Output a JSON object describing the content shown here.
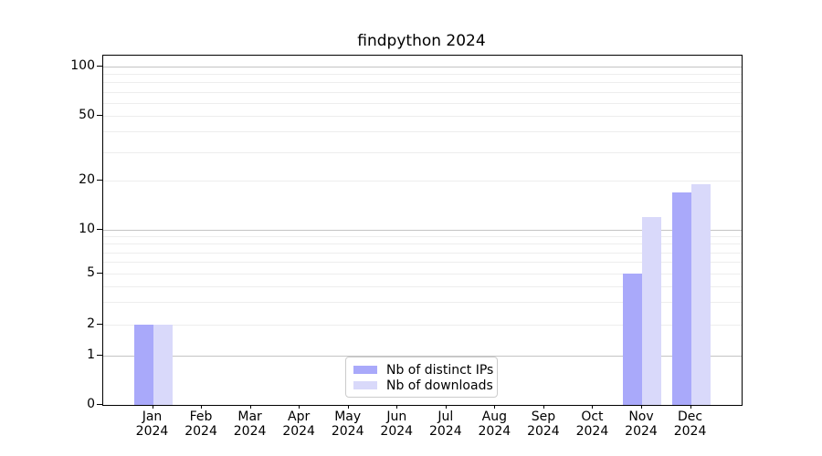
{
  "title": "findpython 2024",
  "chart_data": {
    "type": "bar",
    "title": "findpython 2024",
    "categories": [
      "Jan",
      "Feb",
      "Mar",
      "Apr",
      "May",
      "Jun",
      "Jul",
      "Aug",
      "Sep",
      "Oct",
      "Nov",
      "Dec"
    ],
    "x_year_label": "2024",
    "series": [
      {
        "name": "Nb of distinct IPs",
        "color": "#a9a9fa",
        "values": [
          2,
          0,
          0,
          0,
          0,
          0,
          0,
          0,
          0,
          0,
          5,
          17
        ]
      },
      {
        "name": "Nb of downloads",
        "color": "#d9d9fa",
        "values": [
          2,
          0,
          0,
          0,
          0,
          0,
          0,
          0,
          0,
          0,
          12,
          19
        ]
      }
    ],
    "y_scale": "log-with-zero",
    "y_ticks": [
      0,
      1,
      2,
      5,
      10,
      20,
      50,
      100
    ],
    "y_major_gridlines": [
      1,
      10,
      100
    ],
    "y_minor_gridlines": [
      2,
      3,
      4,
      5,
      6,
      7,
      8,
      9,
      20,
      30,
      40,
      50,
      60,
      70,
      80,
      90
    ],
    "ylim": [
      0,
      110
    ],
    "grid": true,
    "legend_position": "inside-bottom-center"
  }
}
